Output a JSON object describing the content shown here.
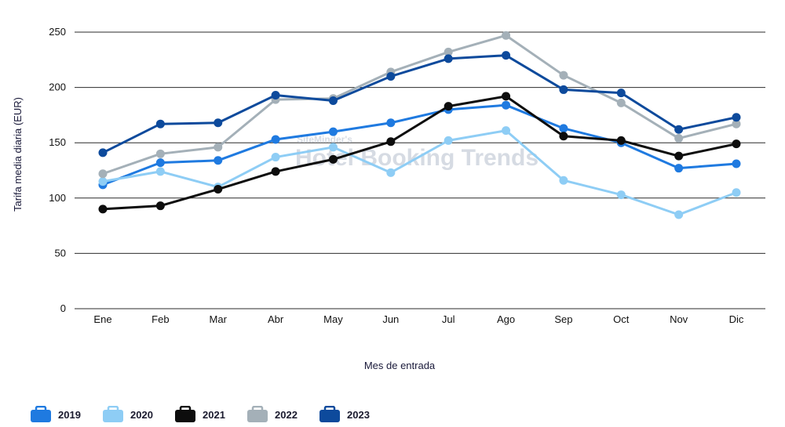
{
  "chart_data": {
    "type": "line",
    "categories": [
      "Ene",
      "Feb",
      "Mar",
      "Abr",
      "May",
      "Jun",
      "Jul",
      "Ago",
      "Sep",
      "Oct",
      "Nov",
      "Dic"
    ],
    "xlabel": "Mes de entrada",
    "ylabel": "Tarifa media diaria (EUR)",
    "ylim": [
      0,
      250
    ],
    "yticks": [
      0,
      50,
      100,
      150,
      200,
      250
    ],
    "grid": true,
    "legend_position": "bottom-left",
    "watermark": {
      "line1": "SiteMinder's",
      "line2": "Hotel Booking Trends"
    },
    "series": [
      {
        "name": "2019",
        "color": "#1f7ae0",
        "values": [
          112,
          132,
          134,
          153,
          160,
          168,
          180,
          184,
          163,
          150,
          127,
          131
        ]
      },
      {
        "name": "2020",
        "color": "#8ecdf5",
        "values": [
          115,
          124,
          110,
          137,
          146,
          123,
          152,
          161,
          116,
          103,
          85,
          105
        ]
      },
      {
        "name": "2021",
        "color": "#0d0d0d",
        "values": [
          90,
          93,
          108,
          124,
          135,
          151,
          183,
          192,
          156,
          152,
          138,
          149
        ]
      },
      {
        "name": "2022",
        "color": "#a4b0b8",
        "values": [
          122,
          140,
          146,
          189,
          190,
          214,
          232,
          247,
          211,
          186,
          154,
          167
        ]
      },
      {
        "name": "2023",
        "color": "#0d4a9c",
        "values": [
          141,
          167,
          168,
          193,
          188,
          210,
          226,
          229,
          198,
          195,
          162,
          173
        ]
      }
    ]
  }
}
